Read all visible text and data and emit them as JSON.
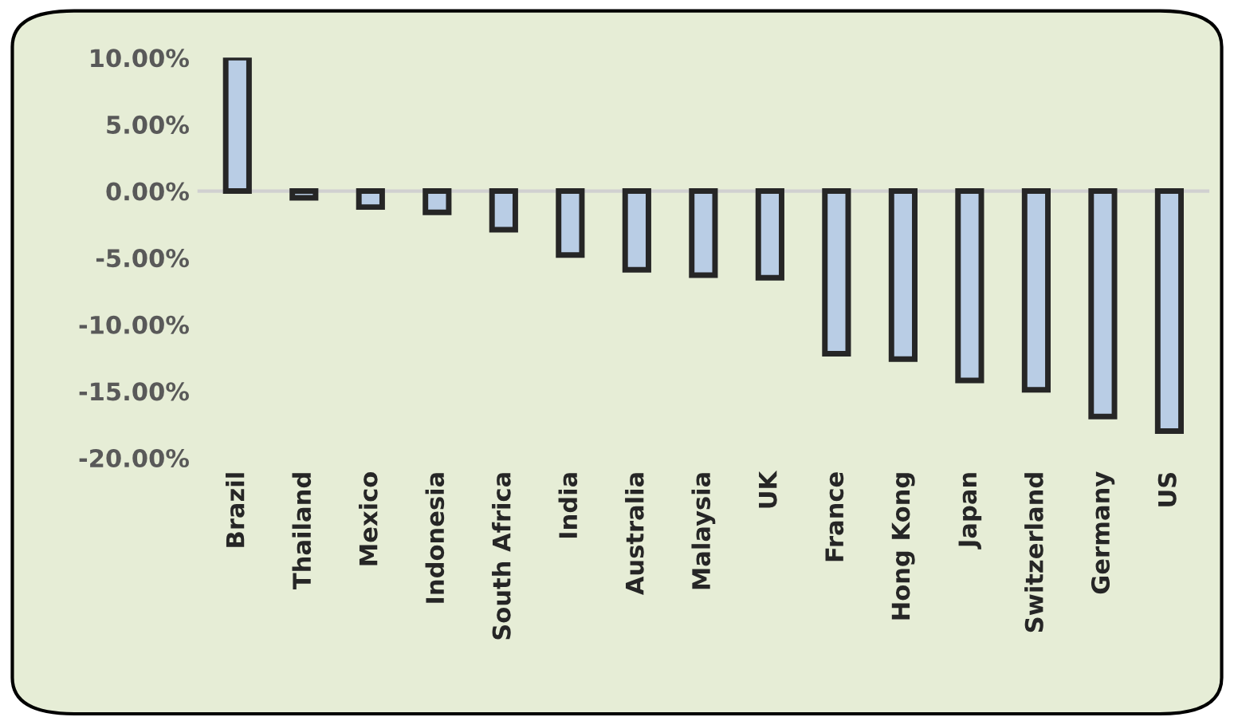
{
  "chart_data": {
    "type": "bar",
    "categories": [
      "Brazil",
      "Thailand",
      "Mexico",
      "Indonesia",
      "South Africa",
      "India",
      "Australia",
      "Malaysia",
      "UK",
      "France",
      "Hong Kong",
      "Japan",
      "Switzerland",
      "Germany",
      "US"
    ],
    "values": [
      10.0,
      -0.5,
      -1.2,
      -1.6,
      -2.9,
      -4.8,
      -5.9,
      -6.3,
      -6.5,
      -12.2,
      -12.6,
      -14.2,
      -14.9,
      -16.9,
      -18.0
    ],
    "color": "#b9cde5",
    "ylim": [
      -20,
      10
    ],
    "yticks": [
      {
        "value": 10,
        "label": "10.00%"
      },
      {
        "value": 5,
        "label": "5.00%"
      },
      {
        "value": 0,
        "label": "0.00%"
      },
      {
        "value": -5,
        "label": "-5.00%"
      },
      {
        "value": -10,
        "label": "-10.00%"
      },
      {
        "value": -15,
        "label": "-15.00%"
      },
      {
        "value": -20,
        "label": "-20.00%"
      }
    ],
    "ref_lines": [
      {
        "axis": "y",
        "value": 0,
        "color": "#d0d0d0"
      }
    ]
  }
}
